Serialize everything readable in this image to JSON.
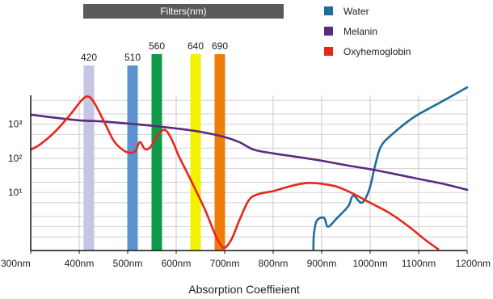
{
  "chart_data": {
    "type": "line",
    "title": "Filters(nm)",
    "xlabel": "Absorption Coeffieient",
    "ylabel": "",
    "xlim": [
      300,
      1200
    ],
    "ylim_log": [
      0.2,
      7000
    ],
    "x_ticks": [
      300,
      400,
      500,
      600,
      700,
      800,
      900,
      1000,
      1100,
      1200
    ],
    "x_tick_labels": [
      "300nm",
      "400nm",
      "500nm",
      "600nm",
      "700nm",
      "800nm",
      "900nm",
      "1000nm",
      "1100nm",
      "1200nm"
    ],
    "y_ticks": [
      10,
      100,
      1000
    ],
    "y_tick_labels": [
      "10¹",
      "10²",
      "10³"
    ],
    "grid": true,
    "legend": "top-right",
    "filters": [
      {
        "label": "420",
        "center": 420,
        "color": "#c4c6e3"
      },
      {
        "label": "510",
        "center": 510,
        "color": "#5b93d2"
      },
      {
        "label": "560",
        "center": 560,
        "color": "#0f9a4a"
      },
      {
        "label": "640",
        "center": 640,
        "color": "#f4f200"
      },
      {
        "label": "690",
        "center": 690,
        "color": "#ee7d0c"
      }
    ],
    "series": [
      {
        "name": "Water",
        "color": "#1f6e9a",
        "points": [
          [
            883,
            0.2
          ],
          [
            884,
            0.6
          ],
          [
            890,
            1.5
          ],
          [
            905,
            1.8
          ],
          [
            913,
            1.0
          ],
          [
            932,
            1.8
          ],
          [
            955,
            4.0
          ],
          [
            965,
            8.0
          ],
          [
            983,
            5.0
          ],
          [
            998,
            12.0
          ],
          [
            1010,
            60
          ],
          [
            1022,
            220
          ],
          [
            1045,
            500
          ],
          [
            1090,
            1600
          ],
          [
            1140,
            4000
          ],
          [
            1200,
            12000
          ]
        ]
      },
      {
        "name": "Melanin",
        "color": "#5a2b7e",
        "points": [
          [
            300,
            1900
          ],
          [
            350,
            1550
          ],
          [
            400,
            1300
          ],
          [
            450,
            1200
          ],
          [
            500,
            1050
          ],
          [
            550,
            900
          ],
          [
            600,
            750
          ],
          [
            650,
            600
          ],
          [
            700,
            420
          ],
          [
            730,
            300
          ],
          [
            760,
            180
          ],
          [
            800,
            140
          ],
          [
            850,
            110
          ],
          [
            900,
            85
          ],
          [
            950,
            63
          ],
          [
            1000,
            48
          ],
          [
            1050,
            35
          ],
          [
            1100,
            25
          ],
          [
            1150,
            18
          ],
          [
            1200,
            12
          ]
        ]
      },
      {
        "name": "Oxyhemoglobin",
        "color": "#e8261b",
        "points": [
          [
            300,
            180
          ],
          [
            320,
            260
          ],
          [
            350,
            600
          ],
          [
            380,
            1800
          ],
          [
            405,
            5000
          ],
          [
            418,
            6500
          ],
          [
            430,
            4500
          ],
          [
            450,
            1300
          ],
          [
            470,
            350
          ],
          [
            485,
            200
          ],
          [
            500,
            150
          ],
          [
            515,
            160
          ],
          [
            525,
            300
          ],
          [
            535,
            190
          ],
          [
            545,
            200
          ],
          [
            555,
            330
          ],
          [
            565,
            550
          ],
          [
            578,
            670
          ],
          [
            592,
            330
          ],
          [
            605,
            120
          ],
          [
            620,
            45
          ],
          [
            640,
            12
          ],
          [
            660,
            3.0
          ],
          [
            680,
            0.6
          ],
          [
            690,
            0.32
          ],
          [
            700,
            0.24
          ],
          [
            715,
            0.45
          ],
          [
            730,
            1.5
          ],
          [
            750,
            6.0
          ],
          [
            770,
            9.0
          ],
          [
            800,
            11
          ],
          [
            840,
            16
          ],
          [
            870,
            19
          ],
          [
            900,
            18
          ],
          [
            930,
            15
          ],
          [
            960,
            10
          ],
          [
            1000,
            5.0
          ],
          [
            1040,
            2.5
          ],
          [
            1080,
            1.0
          ],
          [
            1110,
            0.45
          ],
          [
            1140,
            0.22
          ]
        ]
      }
    ]
  }
}
